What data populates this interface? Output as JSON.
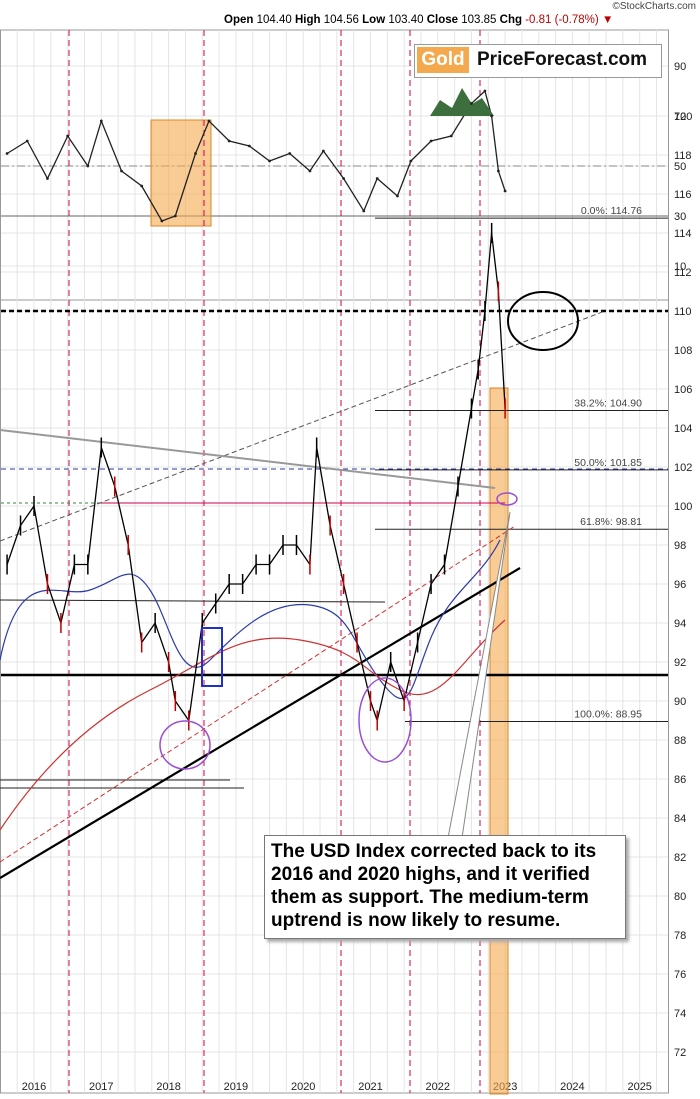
{
  "header": {
    "brand": "©StockCharts.com",
    "open_label": "Open",
    "open": "104.40",
    "high_label": "High",
    "high": "104.56",
    "low_label": "Low",
    "low": "103.40",
    "close_label": "Close",
    "close": "103.85",
    "chg_label": "Chg",
    "chg": "-0.81 (-0.78%)"
  },
  "logo": {
    "gold": "Gold",
    "rest": "PriceForecast.com"
  },
  "annotation": "The USD Index corrected back to its 2016 and 2020 highs, and it verified them as support. The medium-term uptrend is now likely to resume.",
  "colors": {
    "price_up": "#000000",
    "price_down": "#c00000",
    "ma_blue": "#2b3aa8",
    "ma_red": "#cc3333",
    "highlight": "#f5a94e",
    "vline": "#d2004b",
    "circle": "#9b4fd0",
    "rsi_fill": "#3d6e3d"
  },
  "chart_data": [
    {
      "type": "line",
      "panel": "RSI",
      "ylim": [
        0,
        100
      ],
      "yticks": [
        10,
        30,
        50,
        70,
        90
      ],
      "reference_lines": [
        30,
        50,
        70
      ],
      "x": [
        "2015.6",
        "2015.9",
        "2016.2",
        "2016.5",
        "2016.8",
        "2017.0",
        "2017.3",
        "2017.6",
        "2017.9",
        "2018.1",
        "2018.4",
        "2018.6",
        "2018.9",
        "2019.2",
        "2019.5",
        "2019.8",
        "2020.1",
        "2020.3",
        "2020.6",
        "2020.9",
        "2021.1",
        "2021.4",
        "2021.6",
        "2021.9",
        "2022.2",
        "2022.5",
        "2022.7",
        "2022.8",
        "2022.9",
        "2023.0"
      ],
      "values": [
        55,
        60,
        45,
        62,
        50,
        68,
        48,
        42,
        28,
        30,
        55,
        68,
        60,
        58,
        52,
        55,
        48,
        56,
        45,
        32,
        45,
        38,
        52,
        60,
        62,
        75,
        80,
        70,
        48,
        40
      ]
    },
    {
      "type": "line",
      "panel": "USD Index",
      "ylim": [
        71,
        123
      ],
      "yticks": [
        72,
        74,
        76,
        78,
        80,
        82,
        84,
        86,
        88,
        90,
        92,
        94,
        96,
        98,
        100,
        102,
        104,
        106,
        108,
        110,
        112,
        114,
        116,
        118,
        120
      ],
      "xticks": [
        "2016",
        "2017",
        "2018",
        "2019",
        "2020",
        "2021",
        "2022",
        "2023",
        "2024",
        "2025"
      ],
      "series": [
        {
          "x": [
            2015.6,
            2015.8,
            2016.0,
            2016.2,
            2016.4,
            2016.6,
            2016.8,
            2017.0,
            2017.2,
            2017.4,
            2017.6,
            2017.8,
            2018.0,
            2018.1,
            2018.3,
            2018.5,
            2018.7,
            2018.9,
            2019.1,
            2019.3,
            2019.5,
            2019.7,
            2019.9,
            2020.1,
            2020.2,
            2020.4,
            2020.6,
            2020.8,
            2021.0,
            2021.1,
            2021.3,
            2021.5,
            2021.7,
            2021.9,
            2022.1,
            2022.3,
            2022.5,
            2022.6,
            2022.7,
            2022.8,
            2022.9,
            2023.0
          ],
          "values": [
            97,
            99,
            100,
            96,
            94,
            97,
            97,
            103,
            101,
            98,
            93,
            94,
            92,
            90,
            89,
            94,
            95,
            96,
            96,
            97,
            97,
            98,
            98,
            97,
            103,
            99,
            96,
            93,
            90,
            89,
            92,
            90,
            93,
            96,
            97,
            101,
            105,
            107,
            110,
            114,
            111,
            105
          ]
        },
        {
          "values": []
        },
        {
          "values": []
        }
      ],
      "fibonacci": [
        {
          "label": "0.0%: 114.76",
          "value": 114.76
        },
        {
          "label": "38.2%: 104.90",
          "value": 104.9
        },
        {
          "label": "50.0%: 101.85",
          "value": 101.85
        },
        {
          "label": "61.8%: 98.81",
          "value": 98.81
        },
        {
          "label": "100.0%: 88.95",
          "value": 88.95
        }
      ]
    }
  ]
}
